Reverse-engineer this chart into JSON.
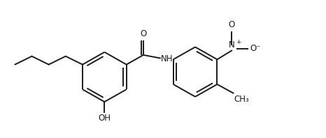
{
  "figsize": [
    4.66,
    1.98
  ],
  "dpi": 100,
  "bg_color": "#ffffff",
  "line_color": "#1a1a1a",
  "line_width": 1.4,
  "font_size": 8.5,
  "font_color": "#1a1a1a",
  "xlim": [
    0,
    10
  ],
  "ylim": [
    0,
    4.3
  ]
}
